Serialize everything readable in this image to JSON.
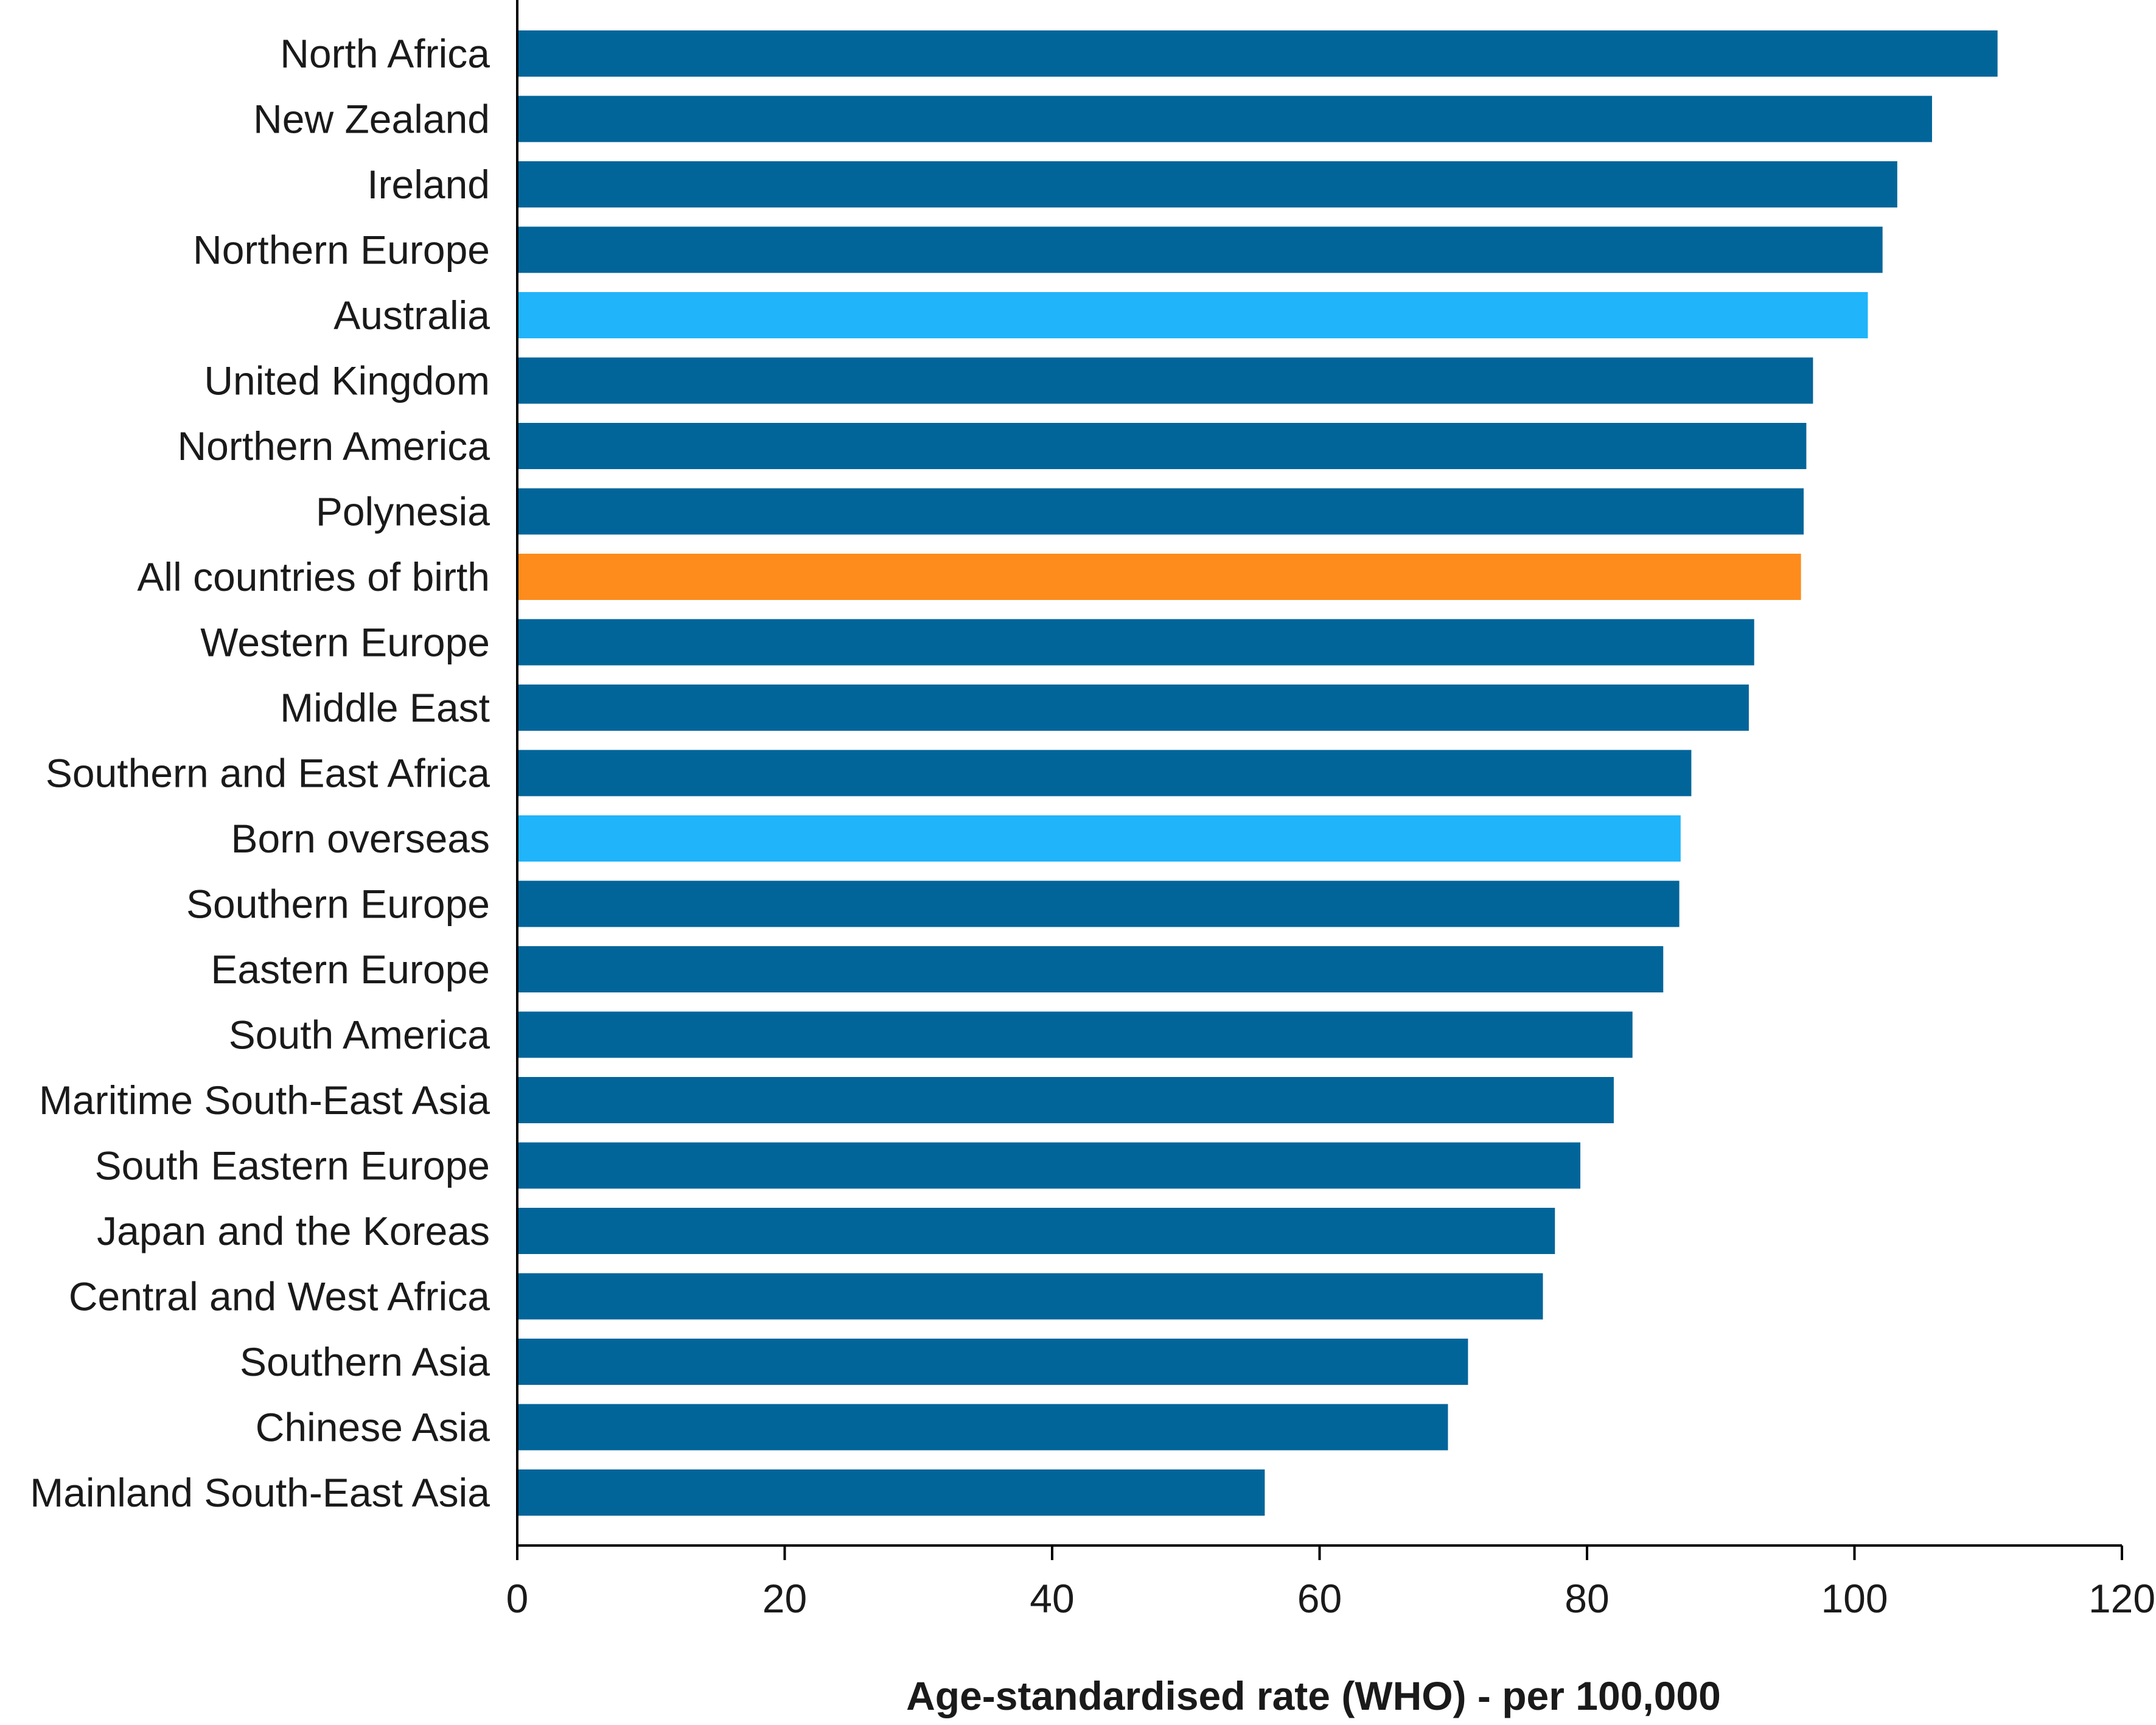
{
  "chart_data": {
    "type": "bar",
    "orientation": "horizontal",
    "title": "",
    "xlabel": "Age-standardised rate (WHO) - per 100,000",
    "ylabel": "",
    "xlim": [
      0,
      120
    ],
    "x_ticks": [
      0,
      20,
      40,
      60,
      80,
      100,
      120
    ],
    "grid": false,
    "legend": "none",
    "colors": {
      "default": "#02659a",
      "highlight_light": "#20b4fa",
      "highlight_total": "#fd8c1c"
    },
    "categories": [
      "North Africa",
      "New Zealand",
      "Ireland",
      "Northern Europe",
      "Australia",
      "United Kingdom",
      "Northern America",
      "Polynesia",
      "All countries of birth",
      "Western Europe",
      "Middle East",
      "Southern and East Africa",
      "Born overseas",
      "Southern Europe",
      "Eastern Europe",
      "South America",
      "Maritime South-East Asia",
      "South Eastern Europe",
      "Japan and the Koreas",
      "Central and West Africa",
      "Southern Asia",
      "Chinese Asia",
      "Mainland South-East Asia"
    ],
    "values": [
      110.7,
      105.8,
      103.2,
      102.1,
      101.0,
      96.9,
      96.4,
      96.2,
      96.0,
      92.5,
      92.1,
      87.8,
      87.0,
      86.9,
      85.7,
      83.4,
      82.0,
      79.5,
      77.6,
      76.7,
      71.1,
      69.6,
      55.9
    ],
    "bar_colors": [
      "default",
      "default",
      "default",
      "default",
      "highlight_light",
      "default",
      "default",
      "default",
      "highlight_total",
      "default",
      "default",
      "default",
      "highlight_light",
      "default",
      "default",
      "default",
      "default",
      "default",
      "default",
      "default",
      "default",
      "default",
      "default"
    ]
  }
}
